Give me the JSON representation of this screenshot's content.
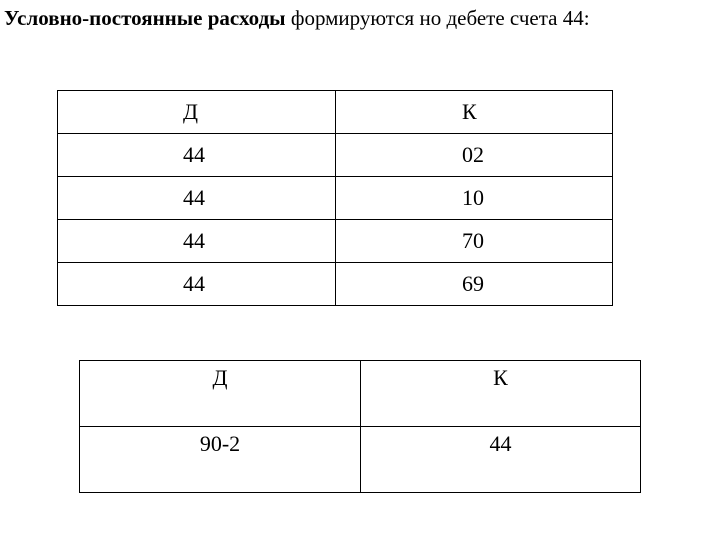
{
  "title": {
    "bold": "Условно-постоянные расходы",
    "rest": " формируются но дебете счета 44:"
  },
  "table1": {
    "headers": [
      "Д",
      "К"
    ],
    "rows": [
      [
        "44",
        "02"
      ],
      [
        "44",
        "10"
      ],
      [
        "44",
        "70"
      ],
      [
        "44",
        "69"
      ]
    ]
  },
  "table2": {
    "headers": [
      "Д",
      "К"
    ],
    "rows": [
      [
        "90-2",
        "44"
      ]
    ]
  }
}
